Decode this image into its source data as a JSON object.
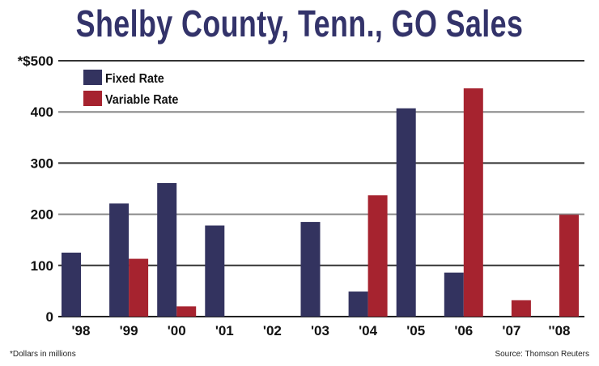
{
  "chart_data": {
    "type": "bar",
    "title": "Shelby County, Tenn., GO Sales",
    "categories": [
      "'98",
      "'99",
      "'00",
      "'01",
      "'02",
      "'03",
      "'04",
      "'05",
      "'06",
      "'07",
      "''08"
    ],
    "series": [
      {
        "name": "Fixed Rate",
        "color": "#33335f",
        "values": [
          125,
          221,
          261,
          178,
          0,
          185,
          49,
          407,
          86,
          0,
          0
        ]
      },
      {
        "name": "Variable Rate",
        "color": "#a6232f",
        "values": [
          0,
          113,
          20,
          0,
          0,
          0,
          237,
          0,
          446,
          32,
          199
        ]
      }
    ],
    "ylim": [
      0,
      500
    ],
    "yticks": [
      0,
      100,
      200,
      300,
      400,
      500
    ],
    "ytick_labels": [
      "0",
      "100",
      "200",
      "300",
      "400",
      "*$500"
    ],
    "grid": true,
    "legend": "top-left",
    "xlabel": "",
    "ylabel": ""
  },
  "footnote": "*Dollars in millions",
  "source": "Source: Thomson Reuters"
}
